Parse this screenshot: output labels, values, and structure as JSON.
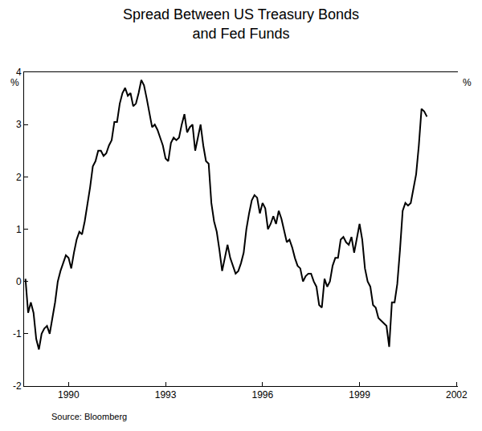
{
  "chart_data": {
    "type": "line",
    "title": "Spread Between US Treasury Bonds\nand Fed Funds",
    "ylabel": "%",
    "y2label": "%",
    "source": "Source: Bloomberg",
    "color": "#000000",
    "grid": false,
    "ylim": [
      -2,
      4
    ],
    "yticks": [
      -2,
      -1,
      0,
      1,
      2,
      3,
      4
    ],
    "y2lim": [
      -2,
      4
    ],
    "y2ticks": [
      -2,
      -1,
      0,
      1,
      2,
      3,
      4
    ],
    "categories": [
      null,
      null,
      null,
      null,
      null,
      null,
      null,
      null,
      null,
      null,
      null,
      null,
      null,
      null,
      null,
      null,
      "1990",
      null,
      null,
      null,
      null,
      null,
      null,
      null,
      null,
      null,
      null,
      null,
      null,
      null,
      null,
      null,
      null,
      null,
      null,
      null,
      null,
      null,
      null,
      null,
      null,
      null,
      null,
      null,
      null,
      null,
      null,
      null,
      null,
      null,
      null,
      null,
      "1993",
      null,
      null,
      null,
      null,
      null,
      null,
      null,
      null,
      null,
      null,
      null,
      null,
      null,
      null,
      null,
      null,
      null,
      null,
      null,
      null,
      null,
      null,
      null,
      null,
      null,
      null,
      null,
      null,
      null,
      null,
      null,
      null,
      null,
      null,
      null,
      "1996",
      null,
      null,
      null,
      null,
      null,
      null,
      null,
      null,
      null,
      null,
      null,
      null,
      null,
      null,
      null,
      null,
      null,
      null,
      null,
      null,
      null,
      null,
      null,
      null,
      null,
      null,
      null,
      null,
      null,
      null,
      null,
      null,
      null,
      null,
      null,
      "1999",
      null,
      null,
      null,
      null,
      null,
      null,
      null,
      null,
      null,
      null,
      null,
      null,
      null,
      null,
      null,
      null,
      null,
      null,
      null,
      null,
      null,
      null,
      null,
      null,
      null,
      null,
      null,
      null,
      null,
      null,
      null,
      null,
      null,
      null,
      null,
      "2002"
    ],
    "values": [
      0.05,
      -0.6,
      -0.4,
      -0.6,
      -1.1,
      -1.3,
      -1.0,
      -0.9,
      -0.85,
      -1.0,
      -0.7,
      -0.4,
      0.0,
      0.2,
      0.35,
      0.5,
      0.45,
      0.25,
      0.55,
      0.8,
      0.95,
      0.9,
      1.15,
      1.45,
      1.8,
      2.2,
      2.3,
      2.5,
      2.5,
      2.4,
      2.45,
      2.6,
      2.7,
      3.05,
      3.05,
      3.4,
      3.6,
      3.7,
      3.55,
      3.6,
      3.35,
      3.4,
      3.6,
      3.85,
      3.75,
      3.5,
      3.2,
      2.95,
      3.0,
      2.9,
      2.75,
      2.6,
      2.35,
      2.3,
      2.65,
      2.75,
      2.7,
      2.75,
      3.0,
      3.2,
      2.85,
      2.95,
      3.0,
      2.5,
      2.75,
      3.0,
      2.6,
      2.3,
      2.25,
      1.5,
      1.15,
      0.95,
      0.6,
      0.2,
      0.45,
      0.7,
      0.45,
      0.3,
      0.15,
      0.2,
      0.35,
      0.55,
      1.0,
      1.3,
      1.55,
      1.65,
      1.6,
      1.3,
      1.5,
      1.4,
      1.0,
      1.1,
      1.25,
      1.1,
      1.35,
      1.2,
      0.95,
      0.75,
      0.8,
      0.65,
      0.45,
      0.3,
      0.25,
      0.0,
      0.1,
      0.15,
      0.15,
      0.0,
      -0.1,
      -0.45,
      -0.5,
      0.05,
      -0.1,
      0.0,
      0.3,
      0.45,
      0.45,
      0.8,
      0.85,
      0.75,
      0.7,
      0.85,
      0.55,
      0.85,
      1.1,
      0.8,
      0.25,
      0.0,
      -0.1,
      -0.45,
      -0.5,
      -0.7,
      -0.75,
      -0.8,
      -0.85,
      -1.25,
      -0.4,
      -0.4,
      -0.05,
      0.6,
      1.35,
      1.5,
      1.45,
      1.5,
      1.75,
      2.05,
      2.6,
      3.3,
      3.25,
      3.15,
      null,
      null,
      null,
      null,
      null,
      null,
      null,
      null,
      null,
      null,
      null
    ]
  }
}
